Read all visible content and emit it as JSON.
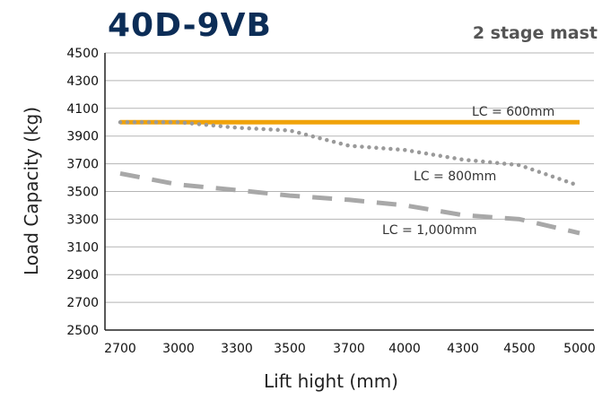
{
  "chart_data": {
    "type": "line",
    "title": "40D-9VB",
    "subtitle": "2 stage mast",
    "xlabel": "Lift hight (mm)",
    "ylabel": "Load Capacity (kg)",
    "x_ticks": [
      "2700",
      "3000",
      "3300",
      "3500",
      "3700",
      "4000",
      "4300",
      "4500",
      "5000"
    ],
    "y_ticks": [
      "4500",
      "4300",
      "4100",
      "3900",
      "3700",
      "3500",
      "3300",
      "3100",
      "2900",
      "2700",
      "2500"
    ],
    "ylim": [
      2500,
      4500
    ],
    "grid": true,
    "series": [
      {
        "name": "LC = 600mm",
        "color": "#f0a30a",
        "style": "solid",
        "x": [
          "2700",
          "3000",
          "3300",
          "3500",
          "3700",
          "4000",
          "4300",
          "4500",
          "5000"
        ],
        "values": [
          4000,
          4000,
          4000,
          4000,
          4000,
          4000,
          4000,
          4000,
          4000
        ]
      },
      {
        "name": "LC = 800mm",
        "color": "#9a9a9a",
        "style": "dotted",
        "x": [
          "2700",
          "3000",
          "3300",
          "3500",
          "3700",
          "4000",
          "4300",
          "4500",
          "5000"
        ],
        "values": [
          4000,
          4000,
          3960,
          3940,
          3830,
          3800,
          3730,
          3690,
          3540
        ]
      },
      {
        "name": "LC = 1,000mm",
        "color": "#a8a8a8",
        "style": "dashed",
        "x": [
          "2700",
          "3000",
          "3300",
          "3500",
          "3700",
          "4000",
          "4300",
          "4500",
          "5000"
        ],
        "values": [
          3630,
          3550,
          3510,
          3470,
          3440,
          3400,
          3330,
          3300,
          3200
        ]
      }
    ]
  }
}
